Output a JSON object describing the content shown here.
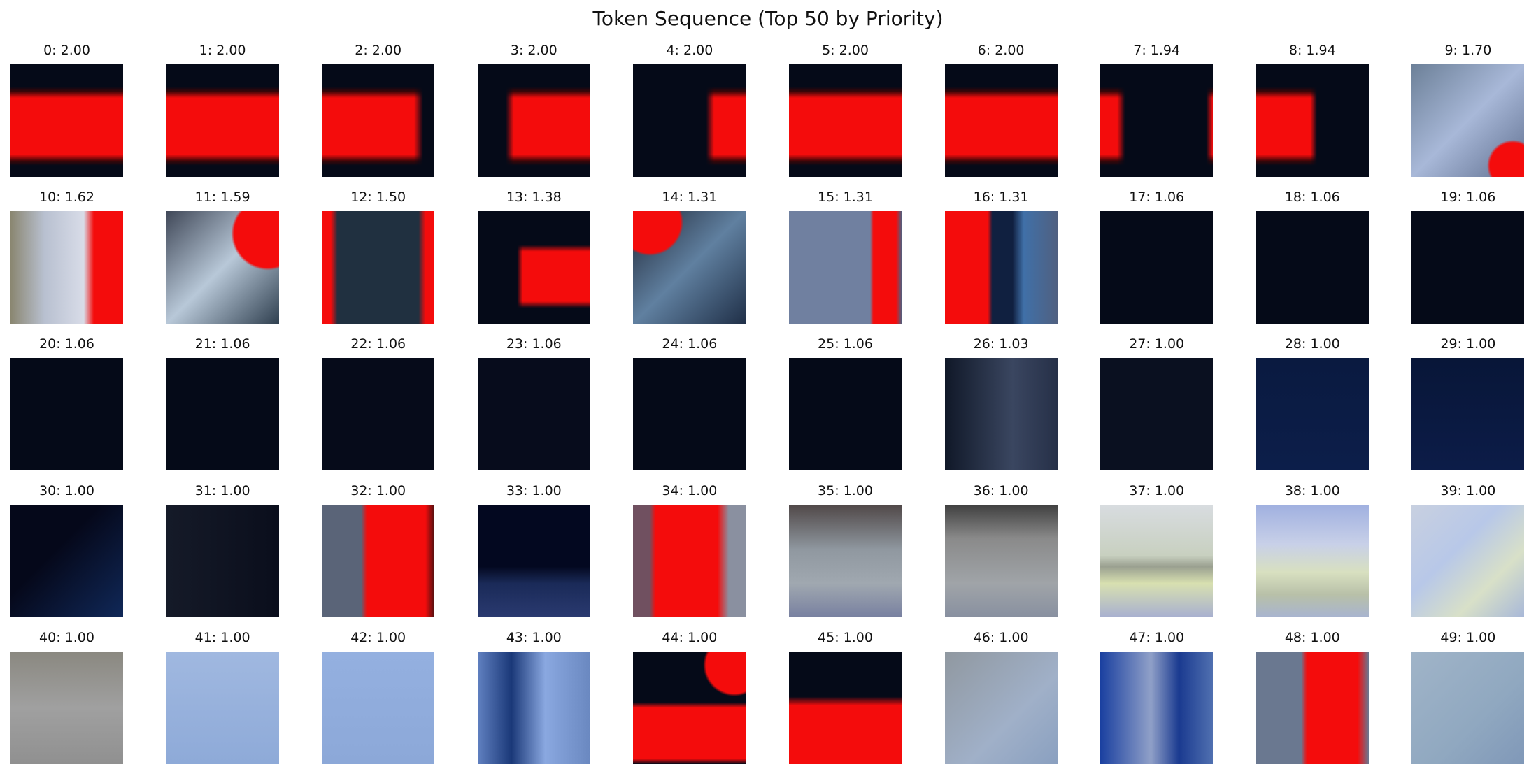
{
  "title": "Token Sequence (Top 50 by Priority)",
  "tiles": [
    {
      "label": "0: 2.00"
    },
    {
      "label": "1: 2.00"
    },
    {
      "label": "2: 2.00"
    },
    {
      "label": "3: 2.00"
    },
    {
      "label": "4: 2.00"
    },
    {
      "label": "5: 2.00"
    },
    {
      "label": "6: 2.00"
    },
    {
      "label": "7: 1.94"
    },
    {
      "label": "8: 1.94"
    },
    {
      "label": "9: 1.70"
    },
    {
      "label": "10: 1.62"
    },
    {
      "label": "11: 1.59"
    },
    {
      "label": "12: 1.50"
    },
    {
      "label": "13: 1.38"
    },
    {
      "label": "14: 1.31"
    },
    {
      "label": "15: 1.31"
    },
    {
      "label": "16: 1.31"
    },
    {
      "label": "17: 1.06"
    },
    {
      "label": "18: 1.06"
    },
    {
      "label": "19: 1.06"
    },
    {
      "label": "20: 1.06"
    },
    {
      "label": "21: 1.06"
    },
    {
      "label": "22: 1.06"
    },
    {
      "label": "23: 1.06"
    },
    {
      "label": "24: 1.06"
    },
    {
      "label": "25: 1.06"
    },
    {
      "label": "26: 1.03"
    },
    {
      "label": "27: 1.00"
    },
    {
      "label": "28: 1.00"
    },
    {
      "label": "29: 1.00"
    },
    {
      "label": "30: 1.00"
    },
    {
      "label": "31: 1.00"
    },
    {
      "label": "32: 1.00"
    },
    {
      "label": "33: 1.00"
    },
    {
      "label": "34: 1.00"
    },
    {
      "label": "35: 1.00"
    },
    {
      "label": "36: 1.00"
    },
    {
      "label": "37: 1.00"
    },
    {
      "label": "38: 1.00"
    },
    {
      "label": "39: 1.00"
    },
    {
      "label": "40: 1.00"
    },
    {
      "label": "41: 1.00"
    },
    {
      "label": "42: 1.00"
    },
    {
      "label": "43: 1.00"
    },
    {
      "label": "44: 1.00"
    },
    {
      "label": "45: 1.00"
    },
    {
      "label": "46: 1.00"
    },
    {
      "label": "47: 1.00"
    },
    {
      "label": "48: 1.00"
    },
    {
      "label": "49: 1.00"
    }
  ]
}
